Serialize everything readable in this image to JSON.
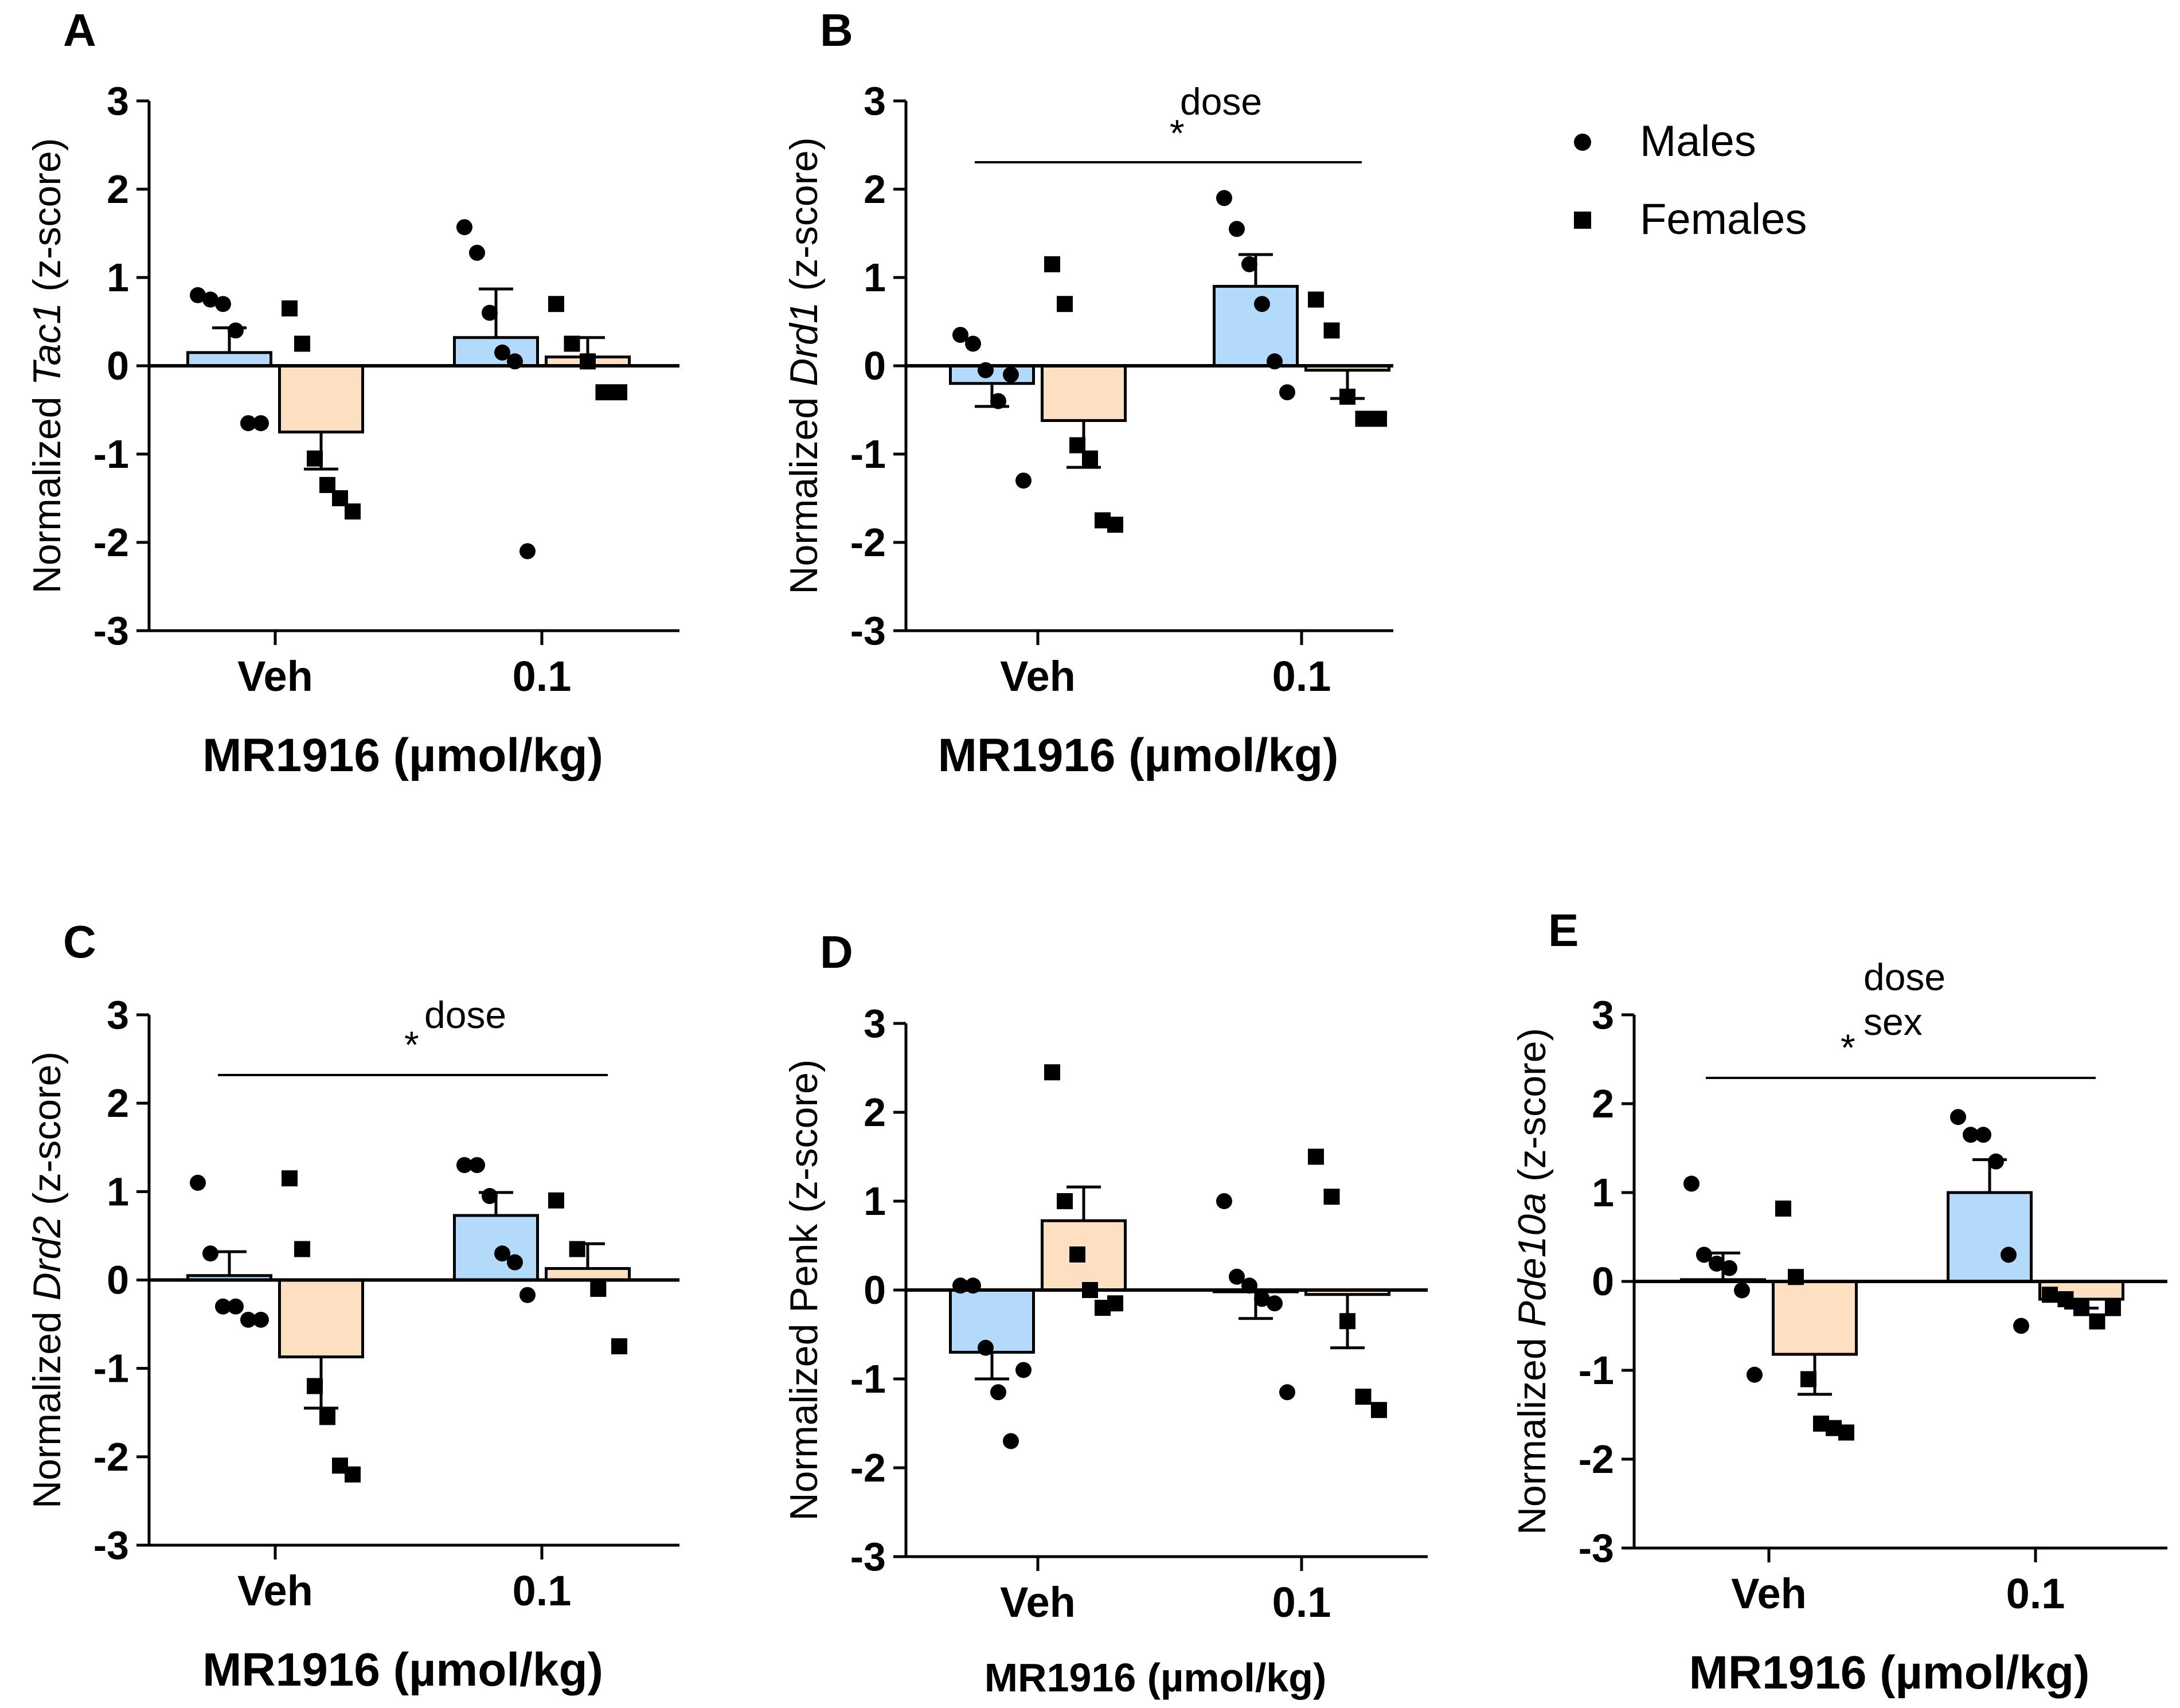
{
  "legend": {
    "items": [
      {
        "label": "Males",
        "marker": "circle"
      },
      {
        "label": "Females",
        "marker": "square"
      }
    ]
  },
  "colors": {
    "males_bar": "#b3d9fb",
    "females_bar": "#fde0c2",
    "ink": "#000000"
  },
  "chart_data": [
    {
      "panel": "A",
      "type": "bar",
      "title": "",
      "ylabel_prefix": "Normalized ",
      "ylabel_gene": "Tac1",
      "ylabel_gene_italic": true,
      "ylabel_suffix": " (z-score)",
      "xlabel": "MR1916 (µmol/kg)",
      "categories": [
        "Veh",
        "0.1"
      ],
      "ylim": [
        -3,
        3
      ],
      "yticks": [
        "3",
        "2",
        "1",
        "0",
        "-1",
        "-2",
        "-3"
      ],
      "series": [
        {
          "name": "Males",
          "means": [
            0.15,
            0.32
          ],
          "sem": [
            0.28,
            0.55
          ],
          "points": [
            [
              0.8,
              0.75,
              0.7,
              0.4,
              -0.65,
              -0.65
            ],
            [
              1.57,
              1.28,
              0.6,
              0.15,
              0.05,
              -2.1
            ]
          ]
        },
        {
          "name": "Females",
          "means": [
            -0.75,
            0.1
          ],
          "sem": [
            0.42,
            0.22
          ],
          "points": [
            [
              0.65,
              0.25,
              -1.05,
              -1.35,
              -1.5,
              -1.65
            ],
            [
              0.7,
              0.25,
              0.05,
              -0.3,
              -0.3
            ]
          ]
        }
      ],
      "annotation": null
    },
    {
      "panel": "B",
      "type": "bar",
      "title": "",
      "ylabel_prefix": "Normalized ",
      "ylabel_gene": "Drd1",
      "ylabel_gene_italic": true,
      "ylabel_suffix": " (z-score)",
      "xlabel": "MR1916 (µmol/kg)",
      "categories": [
        "Veh",
        "0.1"
      ],
      "ylim": [
        -3,
        3
      ],
      "yticks": [
        "3",
        "2",
        "1",
        "0",
        "-1",
        "-2",
        "-3"
      ],
      "series": [
        {
          "name": "Males",
          "means": [
            -0.2,
            0.9
          ],
          "sem": [
            0.26,
            0.36
          ],
          "points": [
            [
              0.35,
              0.25,
              -0.05,
              -0.4,
              -0.1,
              -1.3
            ],
            [
              1.9,
              1.55,
              1.15,
              0.7,
              0.05,
              -0.3
            ]
          ]
        },
        {
          "name": "Females",
          "means": [
            -0.62,
            -0.05
          ],
          "sem": [
            0.53,
            0.32
          ],
          "points": [
            [
              1.15,
              0.7,
              -0.9,
              -1.05,
              -1.75,
              -1.8
            ],
            [
              0.75,
              0.4,
              -0.35,
              -0.6,
              -0.6
            ]
          ]
        }
      ],
      "annotation": {
        "star": "*",
        "superscript": "dose",
        "subscript": ""
      }
    },
    {
      "panel": "C",
      "type": "bar",
      "title": "",
      "ylabel_prefix": "Normalized ",
      "ylabel_gene": "Drd2",
      "ylabel_gene_italic": true,
      "ylabel_suffix": " (z-score)",
      "xlabel": "MR1916 (µmol/kg)",
      "categories": [
        "Veh",
        "0.1"
      ],
      "ylim": [
        -3,
        3
      ],
      "yticks": [
        "3",
        "2",
        "1",
        "0",
        "-1",
        "-2",
        "-3"
      ],
      "series": [
        {
          "name": "Males",
          "means": [
            0.05,
            0.73
          ],
          "sem": [
            0.27,
            0.26
          ],
          "points": [
            [
              1.1,
              0.3,
              -0.3,
              -0.3,
              -0.45,
              -0.45
            ],
            [
              1.3,
              1.3,
              0.95,
              0.3,
              0.2,
              -0.17
            ]
          ]
        },
        {
          "name": "Females",
          "means": [
            -0.87,
            0.13
          ],
          "sem": [
            0.58,
            0.28
          ],
          "points": [
            [
              1.15,
              0.35,
              -1.2,
              -1.55,
              -2.1,
              -2.2
            ],
            [
              0.9,
              0.35,
              -0.1,
              -0.75
            ]
          ]
        }
      ],
      "annotation": {
        "star": "*",
        "superscript": "dose",
        "subscript": ""
      }
    },
    {
      "panel": "D",
      "type": "bar",
      "title": "",
      "ylabel_prefix": "Normalized ",
      "ylabel_gene": "Penk",
      "ylabel_gene_italic": false,
      "ylabel_suffix": " (z-score)",
      "xlabel": "MR1916 (µmol/kg)",
      "categories": [
        "Veh",
        "0.1"
      ],
      "ylim": [
        -3,
        3
      ],
      "yticks": [
        "3",
        "2",
        "1",
        "0",
        "-1",
        "-2",
        "-3"
      ],
      "series": [
        {
          "name": "Males",
          "means": [
            -0.7,
            -0.02
          ],
          "sem": [
            0.3,
            0.3
          ],
          "points": [
            [
              0.05,
              0.05,
              -0.65,
              -1.15,
              -1.7,
              -0.9
            ],
            [
              1.0,
              0.15,
              0.05,
              -0.1,
              -0.15,
              -1.15
            ]
          ]
        },
        {
          "name": "Females",
          "means": [
            0.78,
            -0.05
          ],
          "sem": [
            0.38,
            0.6
          ],
          "points": [
            [
              2.45,
              1.0,
              0.4,
              0.0,
              -0.2,
              -0.15
            ],
            [
              1.5,
              1.05,
              -0.35,
              -1.2,
              -1.35
            ]
          ]
        }
      ],
      "annotation": null
    },
    {
      "panel": "E",
      "type": "bar",
      "title": "",
      "ylabel_prefix": "Normalized ",
      "ylabel_gene": "Pde10a",
      "ylabel_gene_italic": true,
      "ylabel_suffix": " (z-score)",
      "xlabel": "MR1916 (µmol/kg)",
      "categories": [
        "Veh",
        "0.1"
      ],
      "ylim": [
        -3,
        3
      ],
      "yticks": [
        "3",
        "2",
        "1",
        "0",
        "-1",
        "-2",
        "-3"
      ],
      "series": [
        {
          "name": "Males",
          "means": [
            0.02,
            1.0
          ],
          "sem": [
            0.3,
            0.37
          ],
          "points": [
            [
              1.1,
              0.3,
              0.2,
              0.15,
              -0.1,
              -1.05
            ],
            [
              1.85,
              1.65,
              1.65,
              1.35,
              0.3,
              -0.5
            ]
          ]
        },
        {
          "name": "Females",
          "means": [
            -0.82,
            -0.2
          ],
          "sem": [
            0.45,
            0.1
          ],
          "points": [
            [
              0.82,
              0.05,
              -1.1,
              -1.6,
              -1.65,
              -1.7
            ],
            [
              -0.15,
              -0.2,
              -0.3,
              -0.45,
              -0.3
            ]
          ]
        }
      ],
      "annotation": {
        "star": "*",
        "superscript": "dose",
        "subscript": "sex"
      }
    }
  ]
}
